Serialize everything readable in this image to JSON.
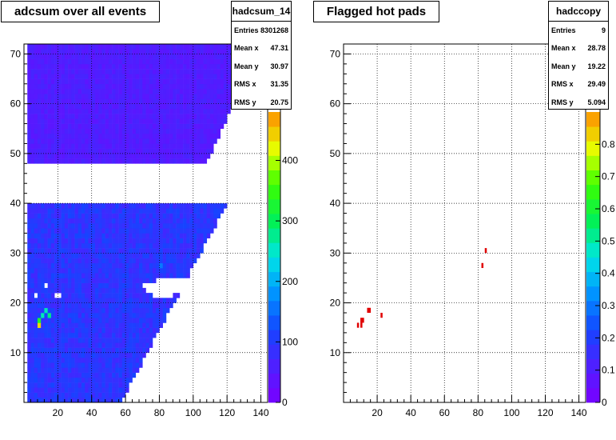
{
  "panels": [
    {
      "title": "adcsum over all events",
      "stats": {
        "name": "hadcsum_14",
        "rows": [
          {
            "label": "Entries",
            "value": "8301268"
          },
          {
            "label": "Mean x",
            "value": "47.31"
          },
          {
            "label": "Mean y",
            "value": "30.97"
          },
          {
            "label": "RMS x",
            "value": "31.35"
          },
          {
            "label": "RMS y",
            "value": "20.75"
          }
        ]
      },
      "palette_labels": [
        "0",
        "100",
        "200",
        "300",
        "400"
      ]
    },
    {
      "title": "Flagged hot pads",
      "stats": {
        "name": "hadccopy",
        "rows": [
          {
            "label": "Entries",
            "value": "9"
          },
          {
            "label": "Mean x",
            "value": "28.78"
          },
          {
            "label": "Mean y",
            "value": "19.22"
          },
          {
            "label": "RMS x",
            "value": "29.49"
          },
          {
            "label": "RMS y",
            "value": "5.094"
          }
        ]
      },
      "palette_labels": [
        "0",
        "0.1",
        "0.2",
        "0.3",
        "0.4",
        "0.5",
        "0.6",
        "0.7",
        "0.8"
      ]
    }
  ],
  "chart_data": [
    {
      "type": "heatmap",
      "title": "adcsum over all events",
      "xlim": [
        0,
        144
      ],
      "ylim": [
        0,
        72
      ],
      "xticks": [
        20,
        40,
        60,
        80,
        100,
        120,
        140
      ],
      "yticks": [
        10,
        20,
        30,
        40,
        50,
        60,
        70
      ],
      "zlim": [
        0,
        480
      ],
      "grid": true,
      "regions": [
        {
          "y_range": [
            0,
            40
          ],
          "x_max_at_y0": 57,
          "x_max_at_y40": 120,
          "typical_value": 95
        },
        {
          "y_range": [
            48,
            72
          ],
          "x_max_at_y48": 108,
          "x_max_at_y72": 140,
          "typical_value": 55
        }
      ],
      "hot_cells": [
        {
          "x": 10,
          "y": 17,
          "value": 260
        },
        {
          "x": 12,
          "y": 18,
          "value": 260
        },
        {
          "x": 14,
          "y": 17,
          "value": 280
        },
        {
          "x": 17,
          "y": 17,
          "value": 250
        },
        {
          "x": 8,
          "y": 16,
          "value": 330
        },
        {
          "x": 8,
          "y": 15,
          "value": 440
        },
        {
          "x": 85,
          "y": 29,
          "value": 190
        },
        {
          "x": 80,
          "y": 27,
          "value": 160
        }
      ],
      "empty_cells": [
        {
          "x": 27,
          "y": 66
        },
        {
          "x": 3,
          "y": 23
        },
        {
          "x": 7,
          "y": 23
        },
        {
          "x": 12,
          "y": 23
        },
        {
          "x": 18,
          "y": 21
        },
        {
          "x": 20,
          "y": 21
        },
        {
          "x": 6,
          "y": 21
        },
        {
          "x": 9,
          "y": 21
        }
      ],
      "empty_x_ranges": [
        {
          "y": 24,
          "x": [
            78,
            96
          ]
        },
        {
          "y": 23,
          "x": [
            70,
            94
          ]
        },
        {
          "y": 22,
          "x": [
            72,
            90
          ]
        },
        {
          "y": 21,
          "x": [
            76,
            86
          ]
        }
      ]
    },
    {
      "type": "heatmap",
      "title": "Flagged hot pads",
      "xlim": [
        0,
        144
      ],
      "ylim": [
        0,
        72
      ],
      "xticks": [
        20,
        40,
        60,
        80,
        100,
        120,
        140
      ],
      "yticks": [
        10,
        20,
        30,
        40,
        50,
        60,
        70
      ],
      "zlim": [
        0,
        0.9
      ],
      "grid": true,
      "cells": [
        {
          "x": 14,
          "y": 18,
          "value": 1
        },
        {
          "x": 15,
          "y": 18,
          "value": 1
        },
        {
          "x": 10,
          "y": 16,
          "value": 1
        },
        {
          "x": 11,
          "y": 16,
          "value": 1
        },
        {
          "x": 8,
          "y": 15,
          "value": 1
        },
        {
          "x": 22,
          "y": 17,
          "value": 1
        },
        {
          "x": 84,
          "y": 30,
          "value": 1
        },
        {
          "x": 82,
          "y": 27,
          "value": 1
        },
        {
          "x": 10,
          "y": 15,
          "value": 1
        }
      ]
    }
  ]
}
